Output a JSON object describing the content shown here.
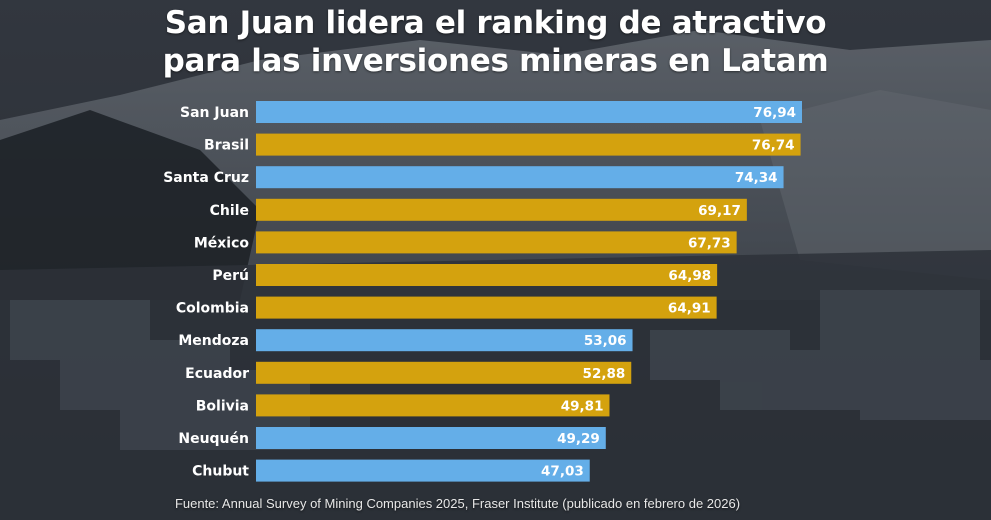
{
  "title_lines": [
    "San Juan lidera el ranking de atractivo",
    "para las inversiones mineras en Latam"
  ],
  "source": "Fuente: Annual Survey of Mining Companies 2025, Fraser Institute (publicado en febrero de 2026)",
  "colors": {
    "blue": "#64aee8",
    "gold": "#d4a20e"
  },
  "chart_data": {
    "type": "bar",
    "orientation": "horizontal",
    "title": "San Juan lidera el ranking de atractivo para las inversiones mineras en Latam",
    "categories": [
      "San Juan",
      "Brasil",
      "Santa Cruz",
      "Chile",
      "México",
      "Perú",
      "Colombia",
      "Mendoza",
      "Ecuador",
      "Bolivia",
      "Neuquén",
      "Chubut"
    ],
    "values": [
      76.94,
      76.74,
      74.34,
      69.17,
      67.73,
      64.98,
      64.91,
      53.06,
      52.88,
      49.81,
      49.29,
      47.03
    ],
    "value_labels": [
      "76,94",
      "76,74",
      "74,34",
      "69,17",
      "67,73",
      "64,98",
      "64,91",
      "53,06",
      "52,88",
      "49,81",
      "49,29",
      "47,03"
    ],
    "bar_colors": [
      "blue",
      "gold",
      "blue",
      "gold",
      "gold",
      "gold",
      "gold",
      "blue",
      "gold",
      "gold",
      "blue",
      "blue"
    ],
    "xlim": [
      0,
      76.94
    ],
    "xlabel": "",
    "ylabel": "",
    "grid": false,
    "legend": "none"
  }
}
